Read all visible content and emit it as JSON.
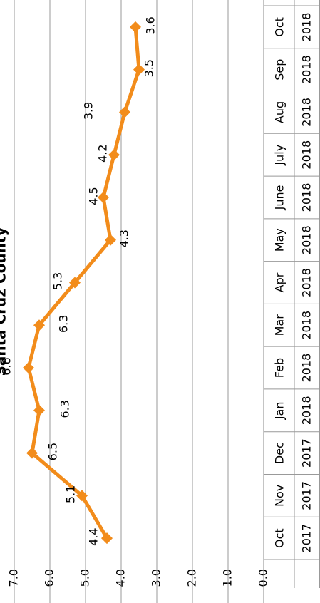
{
  "chart_data": {
    "type": "line",
    "title": "Santa Cruz County",
    "categories": [
      "Oct",
      "Nov",
      "Dec",
      "Jan",
      "Feb",
      "Mar",
      "Apr",
      "May",
      "June",
      "July",
      "Aug",
      "Sep",
      "Oct"
    ],
    "category_years": [
      "2017",
      "2017",
      "2017",
      "2018",
      "2018",
      "2018",
      "2018",
      "2018",
      "2018",
      "2018",
      "2018",
      "2018",
      "2018"
    ],
    "values": [
      4.4,
      5.1,
      6.5,
      6.3,
      6.6,
      6.3,
      5.3,
      4.3,
      4.5,
      4.2,
      3.9,
      3.5,
      3.6
    ],
    "color": "#f28c1b",
    "ylim": [
      0,
      7
    ],
    "yticks": [
      {
        "value": 0,
        "label": "0.0"
      },
      {
        "value": 1,
        "label": "1.0"
      },
      {
        "value": 2,
        "label": "2.0"
      },
      {
        "value": 3,
        "label": "3.0"
      },
      {
        "value": 4,
        "label": "4.0"
      },
      {
        "value": 5,
        "label": "5.0"
      },
      {
        "value": 6,
        "label": "6.0"
      },
      {
        "value": 7,
        "label": "7.0"
      }
    ],
    "grid": true
  }
}
